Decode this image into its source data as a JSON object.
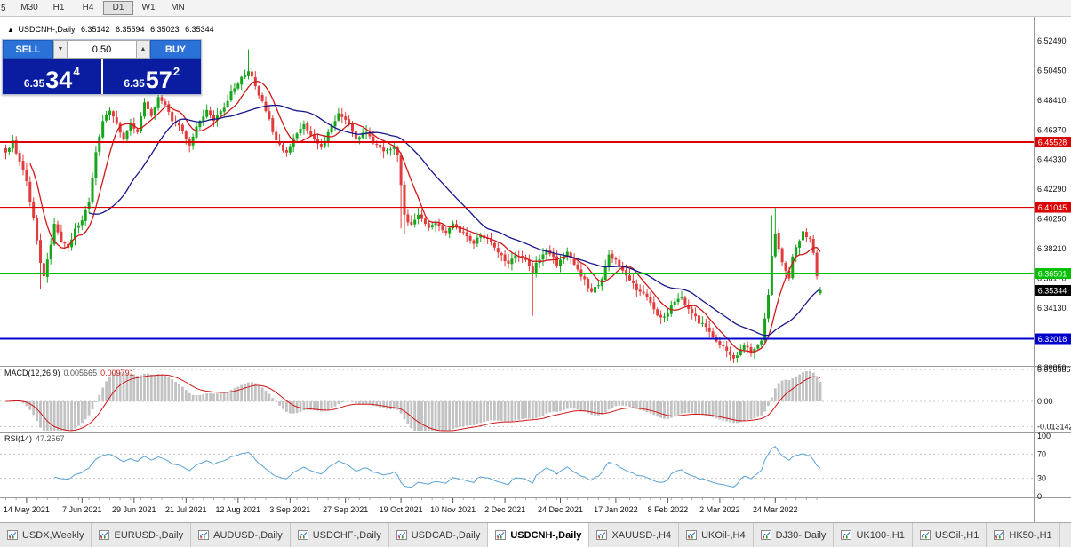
{
  "toolbar": {
    "partial": "5",
    "timeframes": [
      "M30",
      "H1",
      "H4",
      "D1",
      "W1",
      "MN"
    ],
    "active": "D1"
  },
  "header": {
    "arrow": "▲",
    "title": "USDCNH-,Daily",
    "open": "6.35142",
    "high": "6.35594",
    "low": "6.35023",
    "close": "6.35344"
  },
  "trade_panel": {
    "sell_label": "SELL",
    "buy_label": "BUY",
    "volume": "0.50",
    "bid_main": "6.35",
    "bid_pips": "34",
    "bid_sup": "4",
    "ask_main": "6.35",
    "ask_pips": "57",
    "ask_sup": "2"
  },
  "tabs": [
    {
      "label": "USDX,Weekly",
      "active": false
    },
    {
      "label": "EURUSD-,Daily",
      "active": false
    },
    {
      "label": "AUDUSD-,Daily",
      "active": false
    },
    {
      "label": "USDCHF-,Daily",
      "active": false
    },
    {
      "label": "USDCAD-,Daily",
      "active": false
    },
    {
      "label": "USDCNH-,Daily",
      "active": true
    },
    {
      "label": "XAUUSD-,H4",
      "active": false
    },
    {
      "label": "UKOil-,H4",
      "active": false
    },
    {
      "label": "DJ30-,Daily",
      "active": false
    },
    {
      "label": "UK100-,H1",
      "active": false
    },
    {
      "label": "USOil-,H1",
      "active": false
    },
    {
      "label": "HK50-,H1",
      "active": false
    }
  ],
  "chart_data": {
    "type": "candlestick",
    "symbol": "USDCNH-",
    "period": "Daily",
    "title": "USDCNH-,Daily",
    "ohlc_last": {
      "open": 6.35142,
      "high": 6.35594,
      "low": 6.35023,
      "close": 6.35344
    },
    "y_axis": {
      "ticks": [
        6.5249,
        6.5045,
        6.4841,
        6.4637,
        6.4433,
        6.4229,
        6.4025,
        6.3821,
        6.3617,
        6.3413,
        6.3209,
        6.3005
      ]
    },
    "hlines": [
      {
        "price": 6.45528,
        "label": "6.45528",
        "color": "#dd0000",
        "width": 2
      },
      {
        "price": 6.41045,
        "label": "6.41045",
        "color": "#dd0000",
        "width": 1.2
      },
      {
        "price": 6.36501,
        "label": "6.36501",
        "color": "#00c000",
        "width": 2
      },
      {
        "price": 6.32018,
        "label": "6.32018",
        "color": "#0000cc",
        "width": 2
      }
    ],
    "current_price": {
      "value": 6.35344,
      "label": "6.35344",
      "color": "#000000"
    },
    "candles": {
      "count": 236,
      "up_color": "#16a51b",
      "down_color": "#e23b3b",
      "anchors": [
        [
          0,
          6.447
        ],
        [
          2,
          6.456
        ],
        [
          4,
          6.442
        ],
        [
          6,
          6.428
        ],
        [
          8,
          6.402
        ],
        [
          10,
          6.372
        ],
        [
          11,
          6.362
        ],
        [
          13,
          6.385
        ],
        [
          14,
          6.398
        ],
        [
          16,
          6.388
        ],
        [
          18,
          6.382
        ],
        [
          20,
          6.395
        ],
        [
          22,
          6.402
        ],
        [
          24,
          6.415
        ],
        [
          26,
          6.448
        ],
        [
          28,
          6.47
        ],
        [
          30,
          6.477
        ],
        [
          32,
          6.468
        ],
        [
          34,
          6.458
        ],
        [
          36,
          6.47
        ],
        [
          38,
          6.462
        ],
        [
          40,
          6.482
        ],
        [
          42,
          6.474
        ],
        [
          44,
          6.486
        ],
        [
          46,
          6.482
        ],
        [
          48,
          6.47
        ],
        [
          50,
          6.468
        ],
        [
          53,
          6.452
        ],
        [
          55,
          6.465
        ],
        [
          58,
          6.478
        ],
        [
          60,
          6.47
        ],
        [
          63,
          6.48
        ],
        [
          65,
          6.49
        ],
        [
          68,
          6.499
        ],
        [
          70,
          6.505
        ],
        [
          72,
          6.495
        ],
        [
          74,
          6.482
        ],
        [
          76,
          6.47
        ],
        [
          78,
          6.456
        ],
        [
          81,
          6.448
        ],
        [
          83,
          6.458
        ],
        [
          86,
          6.468
        ],
        [
          88,
          6.459
        ],
        [
          91,
          6.452
        ],
        [
          94,
          6.468
        ],
        [
          96,
          6.474
        ],
        [
          99,
          6.467
        ],
        [
          101,
          6.458
        ],
        [
          104,
          6.462
        ],
        [
          106,
          6.455
        ],
        [
          109,
          6.448
        ],
        [
          112,
          6.452
        ],
        [
          113,
          6.447
        ],
        [
          115,
          6.404
        ],
        [
          117,
          6.398
        ],
        [
          119,
          6.406
        ],
        [
          122,
          6.395
        ],
        [
          124,
          6.401
        ],
        [
          127,
          6.393
        ],
        [
          129,
          6.4
        ],
        [
          132,
          6.392
        ],
        [
          135,
          6.385
        ],
        [
          137,
          6.392
        ],
        [
          140,
          6.386
        ],
        [
          142,
          6.379
        ],
        [
          145,
          6.372
        ],
        [
          147,
          6.379
        ],
        [
          150,
          6.373
        ],
        [
          152,
          6.366
        ],
        [
          154,
          6.376
        ],
        [
          156,
          6.381
        ],
        [
          159,
          6.372
        ],
        [
          162,
          6.379
        ],
        [
          164,
          6.37
        ],
        [
          167,
          6.361
        ],
        [
          169,
          6.352
        ],
        [
          172,
          6.361
        ],
        [
          174,
          6.379
        ],
        [
          177,
          6.371
        ],
        [
          179,
          6.363
        ],
        [
          182,
          6.355
        ],
        [
          185,
          6.348
        ],
        [
          187,
          6.339
        ],
        [
          190,
          6.334
        ],
        [
          192,
          6.343
        ],
        [
          195,
          6.349
        ],
        [
          197,
          6.34
        ],
        [
          200,
          6.332
        ],
        [
          203,
          6.325
        ],
        [
          205,
          6.318
        ],
        [
          208,
          6.312
        ],
        [
          210,
          6.307
        ],
        [
          213,
          6.316
        ],
        [
          215,
          6.311
        ],
        [
          218,
          6.32
        ],
        [
          220,
          6.35
        ],
        [
          221,
          6.378
        ],
        [
          222,
          6.392
        ],
        [
          224,
          6.373
        ],
        [
          226,
          6.362
        ],
        [
          227,
          6.376
        ],
        [
          229,
          6.388
        ],
        [
          230,
          6.393
        ],
        [
          232,
          6.388
        ],
        [
          233,
          6.379
        ],
        [
          234,
          6.362
        ],
        [
          235,
          6.35344
        ]
      ],
      "spikes": [
        {
          "i": 10,
          "low": 6.354
        },
        {
          "i": 70,
          "high": 6.519
        },
        {
          "i": 114,
          "low": 6.396
        },
        {
          "i": 115,
          "low": 6.392
        },
        {
          "i": 152,
          "low": 6.336
        },
        {
          "i": 210,
          "low": 6.3035
        },
        {
          "i": 221,
          "high": 6.405
        },
        {
          "i": 222,
          "high": 6.41
        }
      ],
      "last": [
        6.35142,
        6.35594,
        6.35023,
        6.35344
      ]
    },
    "moving_averages": [
      {
        "name": "fast",
        "type": "sma",
        "period": 8,
        "color": "#d01818"
      },
      {
        "name": "slow",
        "type": "sma",
        "period": 25,
        "color": "#16168c"
      }
    ],
    "macd": {
      "label": "MACD(12,26,9)",
      "value": "0.005665",
      "signal_value": "0.009791",
      "fast": 12,
      "slow": 26,
      "signal": 9,
      "axis_ticks": [
        {
          "v": 0.016586,
          "label": "0.016586"
        },
        {
          "v": 0,
          "label": "0.00"
        },
        {
          "v": -0.013142,
          "label": "-0.013142"
        }
      ],
      "histogram_color": "#c2c2c2",
      "signal_color": "#d01818"
    },
    "rsi": {
      "label": "RSI(14)",
      "value": "47.2567",
      "period": 14,
      "levels": [
        70,
        30
      ],
      "axis_ticks": [
        {
          "v": 100,
          "label": "100"
        },
        {
          "v": 70,
          "label": "70"
        },
        {
          "v": 30,
          "label": "30"
        },
        {
          "v": 0,
          "label": "0"
        }
      ],
      "line_color": "#5aa2d4"
    },
    "x_axis": {
      "labels": [
        {
          "i": 6,
          "label": "14 May 2021"
        },
        {
          "i": 22,
          "label": "7 Jun 2021"
        },
        {
          "i": 37,
          "label": "29 Jun 2021"
        },
        {
          "i": 52,
          "label": "21 Jul 2021"
        },
        {
          "i": 67,
          "label": "12 Aug 2021"
        },
        {
          "i": 82,
          "label": "3 Sep 2021"
        },
        {
          "i": 98,
          "label": "27 Sep 2021"
        },
        {
          "i": 114,
          "label": "19 Oct 2021"
        },
        {
          "i": 129,
          "label": "10 Nov 2021"
        },
        {
          "i": 144,
          "label": "2 Dec 2021"
        },
        {
          "i": 160,
          "label": "24 Dec 2021"
        },
        {
          "i": 176,
          "label": "17 Jan 2022"
        },
        {
          "i": 191,
          "label": "8 Feb 2022"
        },
        {
          "i": 206,
          "label": "2 Mar 2022"
        },
        {
          "i": 222,
          "label": "24 Mar 2022"
        }
      ]
    }
  }
}
